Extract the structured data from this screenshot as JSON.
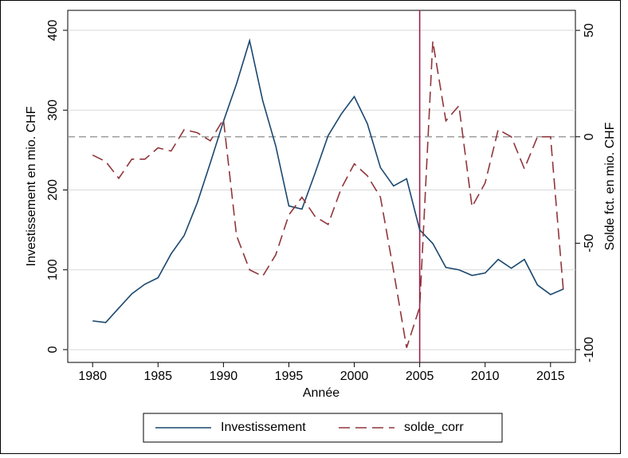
{
  "chart_data": {
    "type": "line",
    "x_label": "Année",
    "y_label": "Investissement en mio. CHF",
    "y2_label": "Solde fct. en mio. CHF",
    "x": [
      1980,
      1981,
      1982,
      1983,
      1984,
      1985,
      1986,
      1987,
      1988,
      1989,
      1990,
      1991,
      1992,
      1993,
      1994,
      1995,
      1996,
      1997,
      1998,
      1999,
      2000,
      2001,
      2002,
      2003,
      2004,
      2005,
      2006,
      2007,
      2008,
      2009,
      2010,
      2011,
      2012,
      2013,
      2014,
      2015,
      2016
    ],
    "series": [
      {
        "name": "Investissement",
        "color": "#1a476f",
        "dash": "solid",
        "axis": "y",
        "values": [
          36,
          34,
          52,
          70,
          82,
          90,
          120,
          143,
          184,
          234,
          286,
          333,
          387,
          312,
          255,
          180,
          176,
          221,
          268,
          295,
          317,
          283,
          228,
          205,
          214,
          150,
          133,
          103,
          100,
          93,
          96,
          113,
          102,
          113,
          81,
          69,
          76
        ]
      },
      {
        "name": "solde_corr",
        "color": "#90353b",
        "dash": "dashed",
        "axis": "y2",
        "values": [
          -8.6,
          -11.6,
          -19.5,
          -10.5,
          -10.5,
          -5.2,
          -6.7,
          3.4,
          1.9,
          -1.9,
          8.2,
          -46.4,
          -62.5,
          -65.5,
          -55.4,
          -36.7,
          -28.4,
          -37.4,
          -41.2,
          -24.3,
          -12.7,
          -18.3,
          -28.4,
          -62.9,
          -99.1,
          -80,
          44.9,
          7.5,
          14.6,
          -32.9,
          -21.7,
          3.4,
          0,
          -15,
          0,
          0,
          -73.7
        ]
      }
    ],
    "xlim": [
      1978.1,
      2016.9
    ],
    "xticks": [
      1980,
      1985,
      1990,
      1995,
      2000,
      2005,
      2010,
      2015
    ],
    "ylim": [
      -16,
      425
    ],
    "yticks": [
      0,
      100,
      200,
      300,
      400
    ],
    "y2lim": [
      -106,
      59.4
    ],
    "y2ticks": [
      50,
      0,
      -50,
      -100
    ],
    "grid": true,
    "hline_y2": 0,
    "hline_color": "#8c8c8c",
    "vline_x": 2005,
    "vline_color": "#a0204a",
    "legend": "bottom"
  }
}
